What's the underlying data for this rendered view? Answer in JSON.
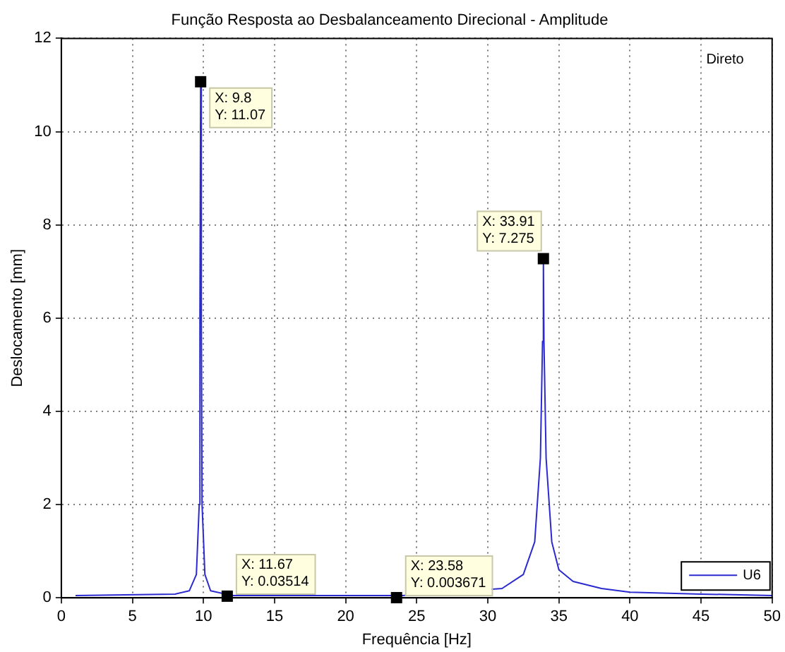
{
  "chart_data": {
    "type": "line",
    "title": "Função Resposta ao Desbalanceamento Direcional - Amplitude",
    "xlabel": "Frequência [Hz]",
    "ylabel": "Deslocamento [mm]",
    "xlim": [
      0,
      50
    ],
    "xticks": [
      0,
      5,
      10,
      15,
      20,
      25,
      30,
      35,
      40,
      45,
      50
    ],
    "ylim": [
      0,
      12
    ],
    "yticks": [
      0,
      2,
      4,
      6,
      8,
      10,
      12
    ],
    "grid": true,
    "legend": "bottom right",
    "marker": "none",
    "line_style": "solid",
    "series": [
      {
        "name": "U6",
        "color": "#2a2ad0",
        "x": [
          1,
          8,
          9,
          9.5,
          9.7,
          9.75,
          9.8,
          9.85,
          9.9,
          10.1,
          10.5,
          12,
          18,
          24,
          31,
          32.5,
          33.3,
          33.7,
          33.85,
          33.91,
          33.95,
          34.1,
          34.5,
          35,
          36,
          38,
          40,
          45,
          50
        ],
        "values": [
          0.05,
          0.08,
          0.15,
          0.5,
          2,
          6.1,
          11.07,
          6,
          2,
          0.5,
          0.15,
          0.05,
          0.05,
          0.05,
          0.2,
          0.5,
          1.2,
          3,
          5.5,
          7.275,
          5.5,
          3,
          1.2,
          0.6,
          0.35,
          0.2,
          0.12,
          0.08,
          0.05
        ]
      }
    ],
    "annotations": [
      {
        "text": "X: 9.8\nY: 11.07",
        "x": 9.8,
        "y": 11.07
      },
      {
        "text": "X: 11.67\nY: 0.03514",
        "x": 11.67,
        "y": 0.03514
      },
      {
        "text": "X: 23.58\nY: 0.003671",
        "x": 23.58,
        "y": 0.003671
      },
      {
        "text": "X: 33.91\nY: 7.275",
        "x": 33.91,
        "y": 7.275
      },
      "Direto"
    ]
  }
}
